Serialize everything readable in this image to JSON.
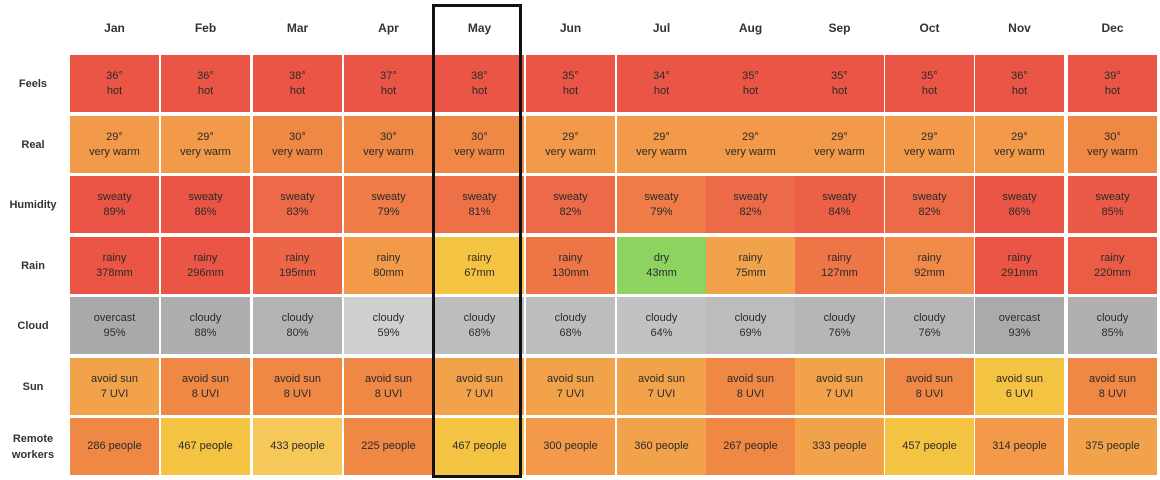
{
  "chart_data": {
    "type": "table",
    "months": [
      "Jan",
      "Feb",
      "Mar",
      "Apr",
      "May",
      "Jun",
      "Jul",
      "Aug",
      "Sep",
      "Oct",
      "Nov",
      "Dec"
    ],
    "highlighted_month": "May",
    "rows": [
      {
        "label": "Feels",
        "cells": [
          {
            "l1": "36°",
            "l2": "hot",
            "color": "#ea5545"
          },
          {
            "l1": "36°",
            "l2": "hot",
            "color": "#ea5545"
          },
          {
            "l1": "38°",
            "l2": "hot",
            "color": "#ea5545"
          },
          {
            "l1": "37°",
            "l2": "hot",
            "color": "#ea5545"
          },
          {
            "l1": "38°",
            "l2": "hot",
            "color": "#ea5545"
          },
          {
            "l1": "35°",
            "l2": "hot",
            "color": "#ea5545"
          },
          {
            "l1": "34°",
            "l2": "hot",
            "color": "#ea5545"
          },
          {
            "l1": "35°",
            "l2": "hot",
            "color": "#ea5545"
          },
          {
            "l1": "35°",
            "l2": "hot",
            "color": "#ea5545"
          },
          {
            "l1": "35°",
            "l2": "hot",
            "color": "#ea5545"
          },
          {
            "l1": "36°",
            "l2": "hot",
            "color": "#ea5545"
          },
          {
            "l1": "39°",
            "l2": "hot",
            "color": "#ea5545"
          }
        ]
      },
      {
        "label": "Real",
        "cells": [
          {
            "l1": "29°",
            "l2": "very warm",
            "color": "#f2994a"
          },
          {
            "l1": "29°",
            "l2": "very warm",
            "color": "#f2994a"
          },
          {
            "l1": "30°",
            "l2": "very warm",
            "color": "#ef8844"
          },
          {
            "l1": "30°",
            "l2": "very warm",
            "color": "#ef8844"
          },
          {
            "l1": "30°",
            "l2": "very warm",
            "color": "#ef8844"
          },
          {
            "l1": "29°",
            "l2": "very warm",
            "color": "#f2994a"
          },
          {
            "l1": "29°",
            "l2": "very warm",
            "color": "#f2994a"
          },
          {
            "l1": "29°",
            "l2": "very warm",
            "color": "#f2994a"
          },
          {
            "l1": "29°",
            "l2": "very warm",
            "color": "#f2994a"
          },
          {
            "l1": "29°",
            "l2": "very warm",
            "color": "#f2994a"
          },
          {
            "l1": "29°",
            "l2": "very warm",
            "color": "#f2994a"
          },
          {
            "l1": "30°",
            "l2": "very warm",
            "color": "#ef8844"
          }
        ]
      },
      {
        "label": "Humidity",
        "cells": [
          {
            "l1": "sweaty",
            "l2": "89%",
            "color": "#ea5545"
          },
          {
            "l1": "sweaty",
            "l2": "86%",
            "color": "#ea5545"
          },
          {
            "l1": "sweaty",
            "l2": "83%",
            "color": "#ec6a48"
          },
          {
            "l1": "sweaty",
            "l2": "79%",
            "color": "#ef7c46"
          },
          {
            "l1": "sweaty",
            "l2": "81%",
            "color": "#ed7047"
          },
          {
            "l1": "sweaty",
            "l2": "82%",
            "color": "#ec6a48"
          },
          {
            "l1": "sweaty",
            "l2": "79%",
            "color": "#ef7c46"
          },
          {
            "l1": "sweaty",
            "l2": "82%",
            "color": "#ec6a48"
          },
          {
            "l1": "sweaty",
            "l2": "84%",
            "color": "#eb6047"
          },
          {
            "l1": "sweaty",
            "l2": "82%",
            "color": "#ec6a48"
          },
          {
            "l1": "sweaty",
            "l2": "86%",
            "color": "#ea5545"
          },
          {
            "l1": "sweaty",
            "l2": "85%",
            "color": "#ea5a46"
          }
        ]
      },
      {
        "label": "Rain",
        "cells": [
          {
            "l1": "rainy",
            "l2": "378mm",
            "color": "#ea5545"
          },
          {
            "l1": "rainy",
            "l2": "296mm",
            "color": "#ea5545"
          },
          {
            "l1": "rainy",
            "l2": "195mm",
            "color": "#ec6547"
          },
          {
            "l1": "rainy",
            "l2": "80mm",
            "color": "#f2994a"
          },
          {
            "l1": "rainy",
            "l2": "67mm",
            "color": "#f5c342"
          },
          {
            "l1": "rainy",
            "l2": "130mm",
            "color": "#ee7646"
          },
          {
            "l1": "dry",
            "l2": "43mm",
            "color": "#8dd35f"
          },
          {
            "l1": "rainy",
            "l2": "75mm",
            "color": "#f2a24a"
          },
          {
            "l1": "rainy",
            "l2": "127mm",
            "color": "#ee7646"
          },
          {
            "l1": "rainy",
            "l2": "92mm",
            "color": "#f08a48"
          },
          {
            "l1": "rainy",
            "l2": "291mm",
            "color": "#ea5545"
          },
          {
            "l1": "rainy",
            "l2": "220mm",
            "color": "#eb5c46"
          }
        ]
      },
      {
        "label": "Cloud",
        "cells": [
          {
            "l1": "overcast",
            "l2": "95%",
            "color": "#a9a9a9"
          },
          {
            "l1": "cloudy",
            "l2": "88%",
            "color": "#aeaeae"
          },
          {
            "l1": "cloudy",
            "l2": "80%",
            "color": "#b3b3b3"
          },
          {
            "l1": "cloudy",
            "l2": "59%",
            "color": "#cfcfcf"
          },
          {
            "l1": "cloudy",
            "l2": "68%",
            "color": "#bdbdbd"
          },
          {
            "l1": "cloudy",
            "l2": "68%",
            "color": "#bdbdbd"
          },
          {
            "l1": "cloudy",
            "l2": "64%",
            "color": "#c2c2c2"
          },
          {
            "l1": "cloudy",
            "l2": "69%",
            "color": "#bcbcbc"
          },
          {
            "l1": "cloudy",
            "l2": "76%",
            "color": "#b6b6b6"
          },
          {
            "l1": "cloudy",
            "l2": "76%",
            "color": "#b6b6b6"
          },
          {
            "l1": "overcast",
            "l2": "93%",
            "color": "#aaaaaa"
          },
          {
            "l1": "cloudy",
            "l2": "85%",
            "color": "#b0b0b0"
          }
        ]
      },
      {
        "label": "Sun",
        "cells": [
          {
            "l1": "avoid sun",
            "l2": "7 UVI",
            "color": "#f2a24a"
          },
          {
            "l1": "avoid sun",
            "l2": "8 UVI",
            "color": "#ef8844"
          },
          {
            "l1": "avoid sun",
            "l2": "8 UVI",
            "color": "#ef8844"
          },
          {
            "l1": "avoid sun",
            "l2": "8 UVI",
            "color": "#ef8844"
          },
          {
            "l1": "avoid sun",
            "l2": "7 UVI",
            "color": "#f2a24a"
          },
          {
            "l1": "avoid sun",
            "l2": "7 UVI",
            "color": "#f2a24a"
          },
          {
            "l1": "avoid sun",
            "l2": "7 UVI",
            "color": "#f2a24a"
          },
          {
            "l1": "avoid sun",
            "l2": "8 UVI",
            "color": "#ef8844"
          },
          {
            "l1": "avoid sun",
            "l2": "7 UVI",
            "color": "#f2a24a"
          },
          {
            "l1": "avoid sun",
            "l2": "8 UVI",
            "color": "#ef8844"
          },
          {
            "l1": "avoid sun",
            "l2": "6 UVI",
            "color": "#f5c342"
          },
          {
            "l1": "avoid sun",
            "l2": "8 UVI",
            "color": "#ef8844"
          }
        ]
      },
      {
        "label": "Remote workers",
        "cells": [
          {
            "l1": "286 people",
            "l2": "",
            "color": "#ef8844"
          },
          {
            "l1": "467 people",
            "l2": "",
            "color": "#f5c342"
          },
          {
            "l1": "433 people",
            "l2": "",
            "color": "#f6c85a"
          },
          {
            "l1": "225 people",
            "l2": "",
            "color": "#ef8844"
          },
          {
            "l1": "467 people",
            "l2": "",
            "color": "#f5c342"
          },
          {
            "l1": "300 people",
            "l2": "",
            "color": "#f2994a"
          },
          {
            "l1": "360 people",
            "l2": "",
            "color": "#f2a24a"
          },
          {
            "l1": "267 people",
            "l2": "",
            "color": "#ef8844"
          },
          {
            "l1": "333 people",
            "l2": "",
            "color": "#f2a24a"
          },
          {
            "l1": "457 people",
            "l2": "",
            "color": "#f5c342"
          },
          {
            "l1": "314 people",
            "l2": "",
            "color": "#f2994a"
          },
          {
            "l1": "375 people",
            "l2": "",
            "color": "#f2a24a"
          }
        ]
      }
    ]
  }
}
